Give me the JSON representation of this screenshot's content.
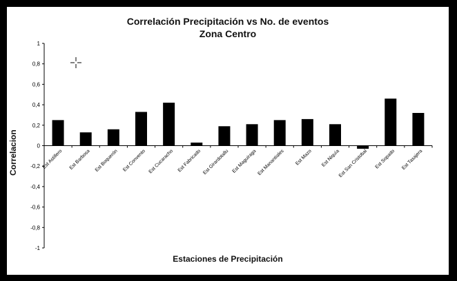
{
  "chart_data": {
    "type": "bar",
    "title": "Correlación Precipitación vs No. de eventos",
    "subtitle": "Zona Centro",
    "xlabel": "Estaciones de Precipitación",
    "ylabel": "Correlacion",
    "ylim": [
      -1,
      1
    ],
    "yticks": [
      "1",
      "0,8",
      "0,6",
      "0,4",
      "0,2",
      "0",
      "-0,2",
      "-0,4",
      "-0,6",
      "-0,8",
      "-1"
    ],
    "grid": false,
    "bar_color": "#000000",
    "categories": [
      "Est Astillero",
      "Est Barbosa",
      "Est Boquerón",
      "Est Convento",
      "Est Cucaracho",
      "Est Fabricado",
      "Est Girardotallu",
      "Est Maguiraga",
      "Est Manantiales",
      "Est Mazo",
      "Est Niquía",
      "Est San Cristobal",
      "Est Sopado",
      "Est Tasajera"
    ],
    "values": [
      0.25,
      0.13,
      0.16,
      0.33,
      0.42,
      0.03,
      0.19,
      0.21,
      0.25,
      0.26,
      0.21,
      -0.03,
      0.46,
      0.32
    ]
  }
}
